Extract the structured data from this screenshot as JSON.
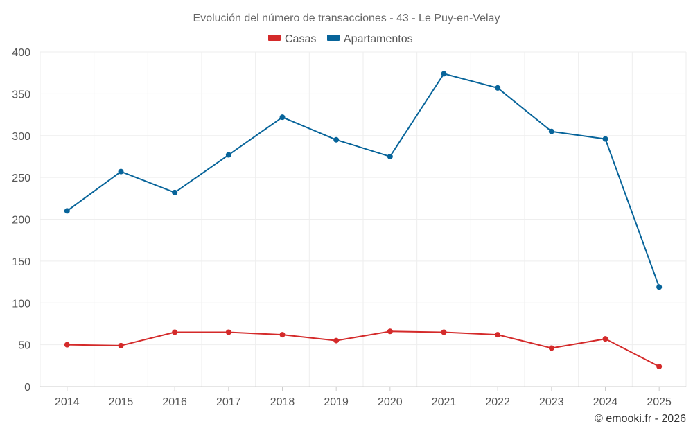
{
  "chart_data": {
    "type": "line",
    "title": "Evolución del número de transacciones - 43 - Le Puy-en-Velay",
    "categories": [
      "2014",
      "2015",
      "2016",
      "2017",
      "2018",
      "2019",
      "2020",
      "2021",
      "2022",
      "2023",
      "2024",
      "2025"
    ],
    "ylim": [
      0,
      400
    ],
    "yticks": [
      0,
      50,
      100,
      150,
      200,
      250,
      300,
      350,
      400
    ],
    "grid": true,
    "legend_position": "top-center",
    "series": [
      {
        "name": "Casas",
        "color": "#d42a2a",
        "values": [
          50,
          49,
          65,
          65,
          62,
          55,
          66,
          65,
          62,
          46,
          57,
          24
        ]
      },
      {
        "name": "Apartamentos",
        "color": "#07649a",
        "values": [
          210,
          257,
          232,
          277,
          322,
          295,
          275,
          374,
          357,
          305,
          296,
          119
        ]
      }
    ]
  },
  "credit": "© emooki.fr - 2026"
}
